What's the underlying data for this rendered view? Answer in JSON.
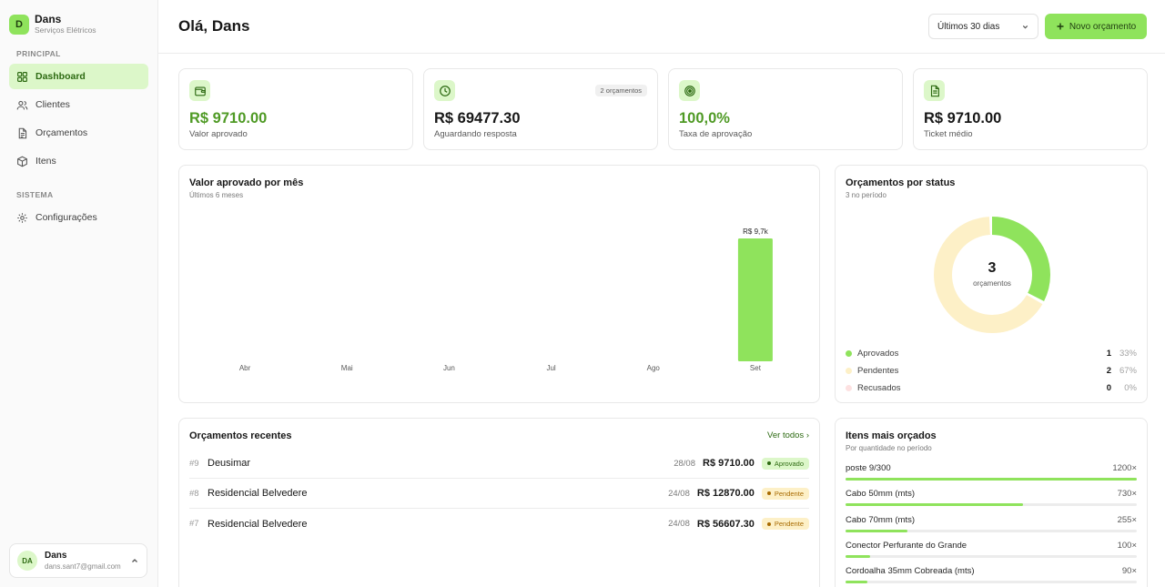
{
  "brand": {
    "initial": "D",
    "name": "Dans",
    "subtitle": "Serviços Elétricos"
  },
  "sidebar": {
    "section_principal": "PRINCIPAL",
    "section_sistema": "SISTEMA",
    "items": [
      {
        "label": "Dashboard",
        "icon": "dashboard-icon",
        "active": true
      },
      {
        "label": "Clientes",
        "icon": "users-icon"
      },
      {
        "label": "Orçamentos",
        "icon": "document-icon"
      },
      {
        "label": "Itens",
        "icon": "box-icon"
      },
      {
        "label": "Configurações",
        "icon": "gear-icon"
      }
    ]
  },
  "user": {
    "initials": "DA",
    "name": "Dans",
    "email": "dans.sant7@gmail.com"
  },
  "header": {
    "greeting": "Olá, Dans",
    "range": "Últimos 30 dias",
    "new_button": "Novo orçamento"
  },
  "kpis": [
    {
      "value": "R$ 9710.00",
      "label": "Valor aprovado",
      "icon": "wallet-icon",
      "green": true
    },
    {
      "value": "R$ 69477.30",
      "label": "Aguardando resposta",
      "icon": "clock-icon",
      "badge": "2 orçamentos"
    },
    {
      "value": "100,0%",
      "label": "Taxa de aprovação",
      "icon": "target-icon",
      "green": true
    },
    {
      "value": "R$ 9710.00",
      "label": "Ticket médio",
      "icon": "receipt-icon"
    }
  ],
  "monthly": {
    "title": "Valor aprovado por mês",
    "subtitle": "Últimos 6 meses"
  },
  "chart_data": {
    "type": "bar",
    "title": "Valor aprovado por mês",
    "subtitle": "Últimos 6 meses",
    "categories": [
      "Abr",
      "Mai",
      "Jun",
      "Jul",
      "Ago",
      "Set"
    ],
    "values": [
      0,
      0,
      0,
      0,
      0,
      9710
    ],
    "data_labels": [
      "",
      "",
      "",
      "",
      "",
      "R$ 9,7k"
    ],
    "color": "#8fe35c"
  },
  "status": {
    "title": "Orçamentos por status",
    "subtitle": "3 no período",
    "total": "3",
    "total_label": "orçamentos",
    "legend": [
      {
        "label": "Aprovados",
        "count": "1",
        "pct": "33%",
        "color": "#8fe35c",
        "value": 1
      },
      {
        "label": "Pendentes",
        "count": "2",
        "pct": "67%",
        "color": "#fdf0c7",
        "value": 2
      },
      {
        "label": "Recusados",
        "count": "0",
        "pct": "0%",
        "color": "#fde1e1",
        "value": 0
      }
    ]
  },
  "recent": {
    "title": "Orçamentos recentes",
    "view_all": "Ver todos ›",
    "rows": [
      {
        "num": "#9",
        "client": "Deusimar",
        "date": "28/08",
        "value": "R$ 9710.00",
        "status": "Aprovado",
        "kind": "ok"
      },
      {
        "num": "#8",
        "client": "Residencial Belvedere",
        "date": "24/08",
        "value": "R$ 12870.00",
        "status": "Pendente",
        "kind": "pend"
      },
      {
        "num": "#7",
        "client": "Residencial Belvedere",
        "date": "24/08",
        "value": "R$ 56607.30",
        "status": "Pendente",
        "kind": "pend"
      }
    ]
  },
  "top_items": {
    "title": "Itens mais orçados",
    "subtitle": "Por quantidade no período",
    "items": [
      {
        "name": "poste 9/300",
        "qty": "1200×",
        "value": 1200
      },
      {
        "name": "Cabo 50mm (mts)",
        "qty": "730×",
        "value": 730
      },
      {
        "name": "Cabo 70mm (mts)",
        "qty": "255×",
        "value": 255
      },
      {
        "name": "Conector Perfurante do Grande",
        "qty": "100×",
        "value": 100
      },
      {
        "name": "Cordoalha 35mm Cobreada (mts)",
        "qty": "90×",
        "value": 90
      }
    ]
  }
}
